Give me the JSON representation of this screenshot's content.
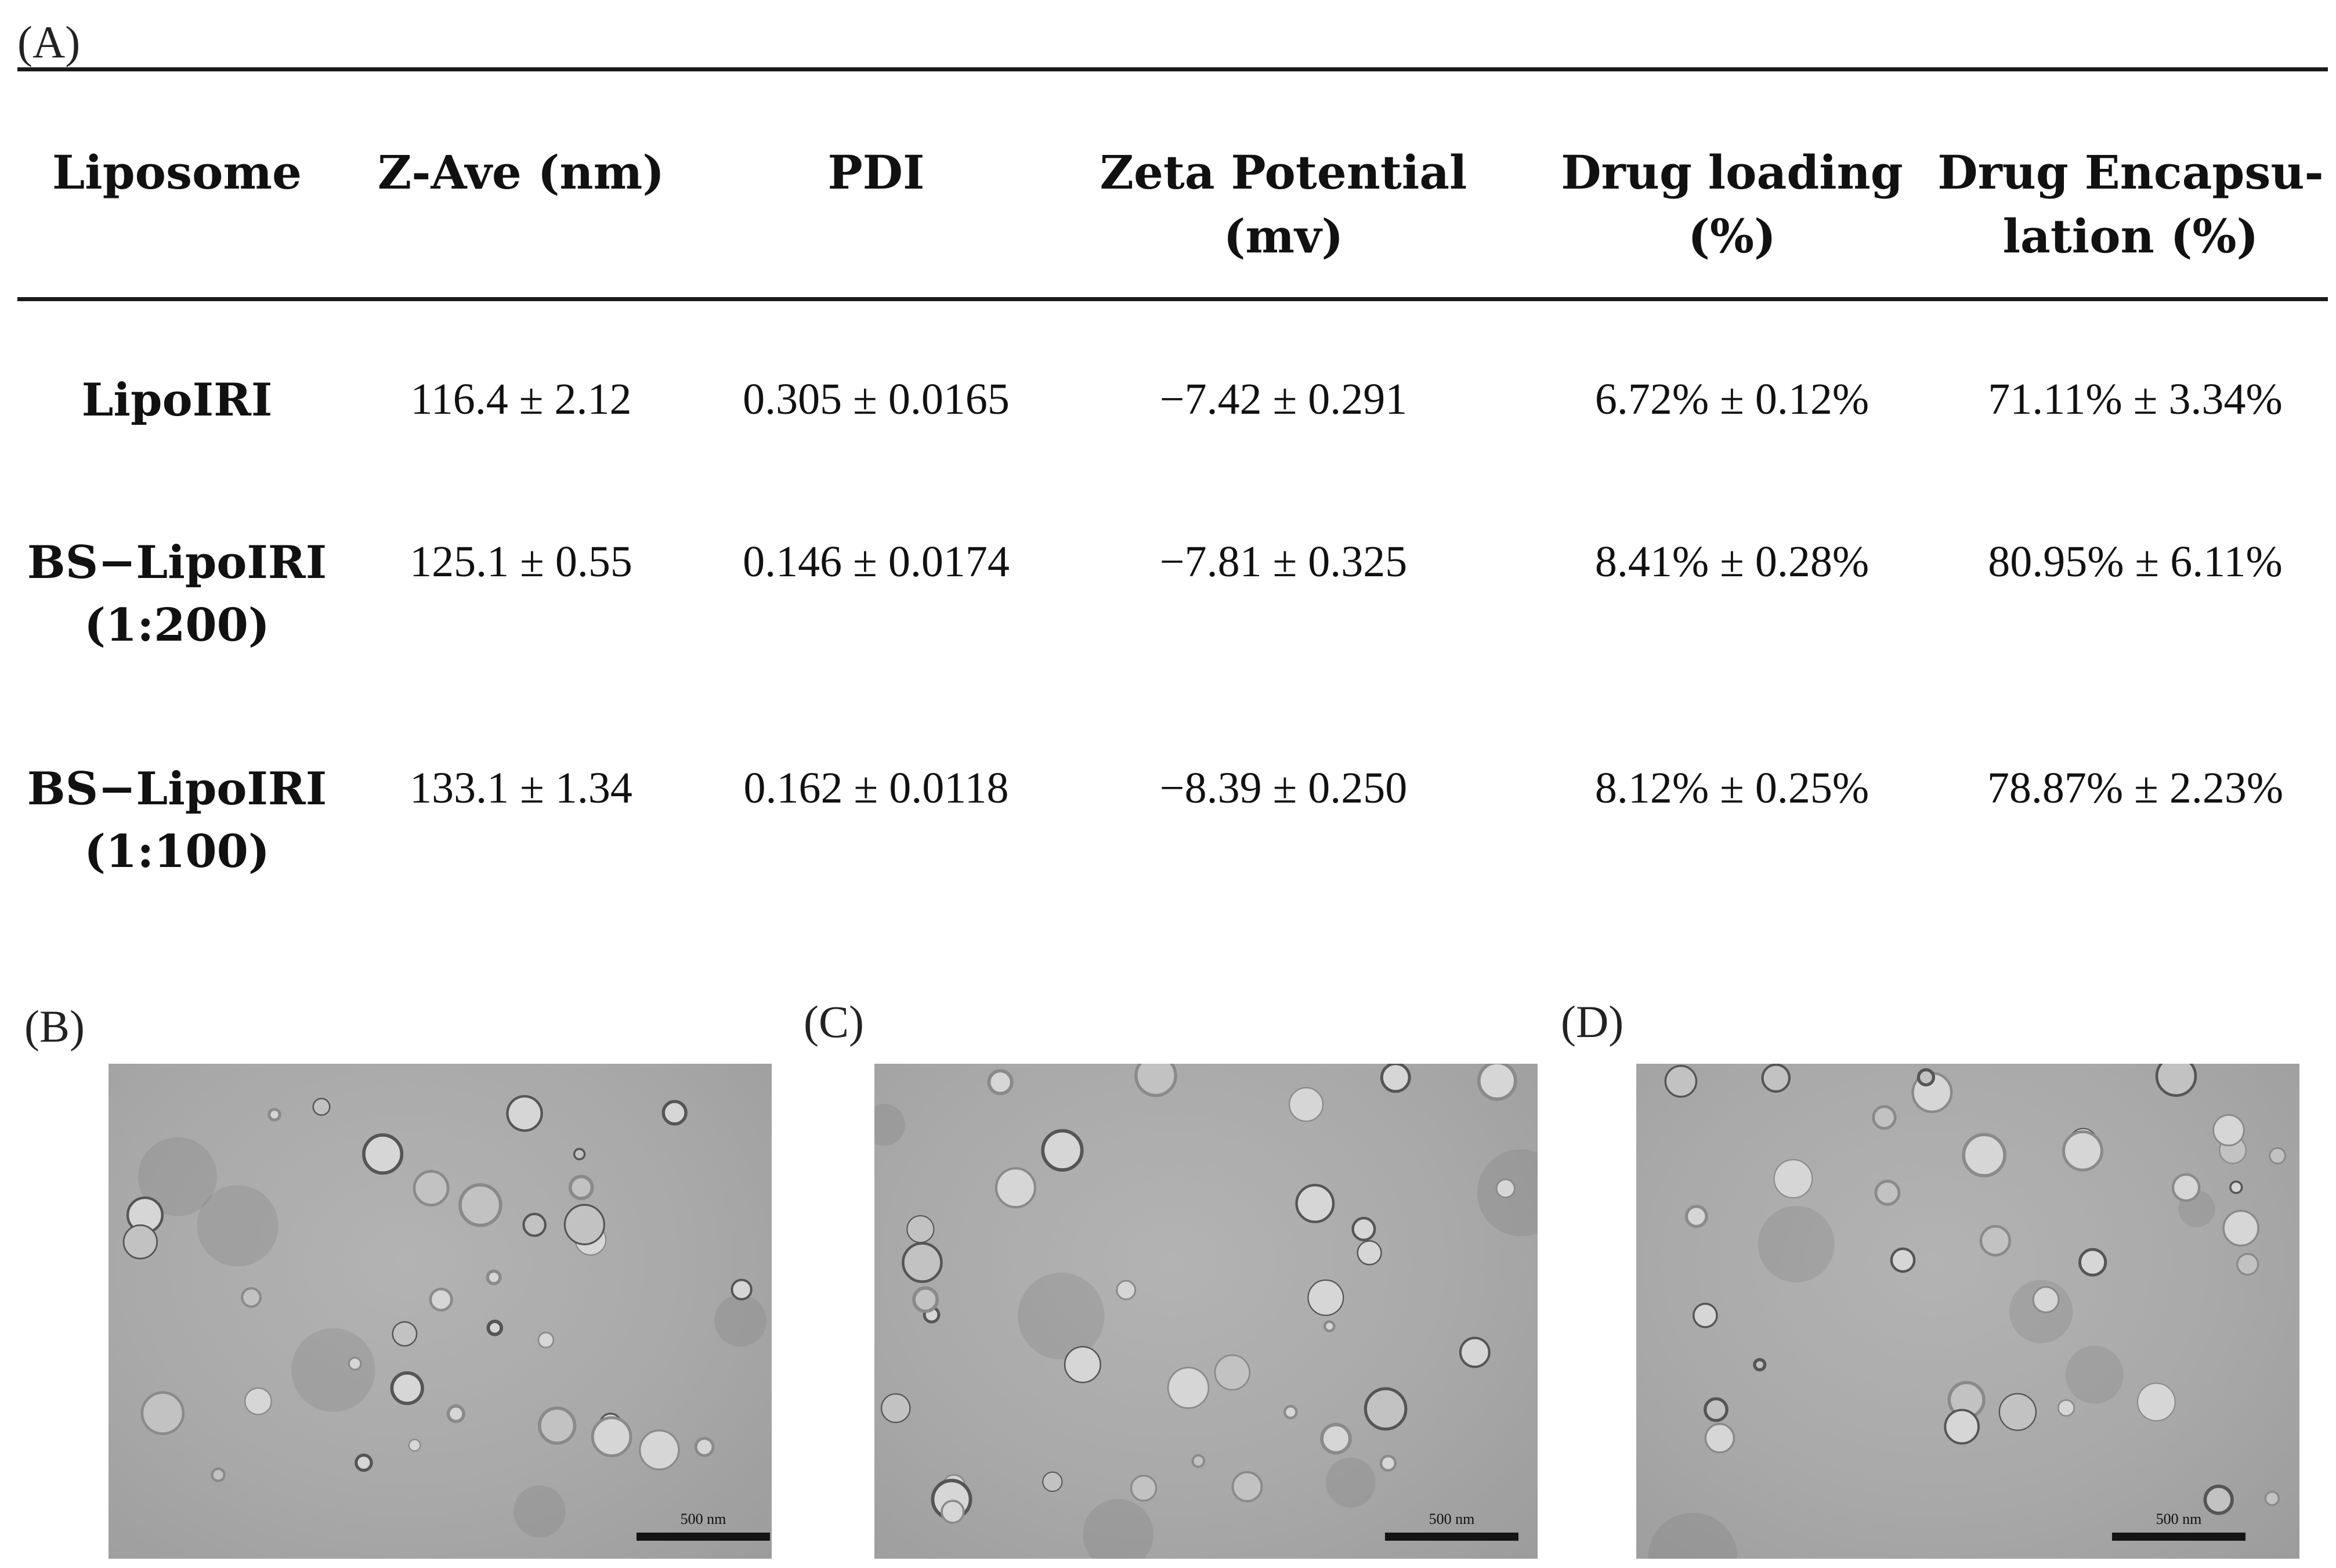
{
  "figure": {
    "panel_a_label": "(A)",
    "table": {
      "columns": [
        {
          "line1": "Liposome",
          "line2": ""
        },
        {
          "line1": "Z-Ave (nm)",
          "line2": ""
        },
        {
          "line1": "PDI",
          "line2": ""
        },
        {
          "line1": "Zeta Potential",
          "line2": "(mv)"
        },
        {
          "line1": "Drug loading",
          "line2": "(%)"
        },
        {
          "line1": "Drug Encapsu-",
          "line2": "lation (%)"
        }
      ],
      "rows": [
        {
          "name_line1": "LipoIRI",
          "name_line2": "",
          "z_ave": "116.4 ± 2.12",
          "pdi": "0.305 ± 0.0165",
          "zeta": "−7.42 ± 0.291",
          "loading": "6.72% ± 0.12%",
          "encapsulation": "71.11% ± 3.34%"
        },
        {
          "name_line1": "BS−LipoIRI",
          "name_line2": "(1:200)",
          "z_ave": "125.1 ± 0.55",
          "pdi": "0.146 ± 0.0174",
          "zeta": "−7.81 ± 0.325",
          "loading": "8.41% ± 0.28%",
          "encapsulation": "80.95% ± 6.11%"
        },
        {
          "name_line1": "BS−LipoIRI",
          "name_line2": "(1:100)",
          "z_ave": "133.1 ± 1.34",
          "pdi": "0.162 ± 0.0118",
          "zeta": "−8.39 ± 0.250",
          "loading": "8.12% ± 0.25%",
          "encapsulation": "78.87% ± 2.23%"
        }
      ]
    },
    "images": [
      {
        "label": "(B)",
        "scale_label": "500 nm"
      },
      {
        "label": "(C)",
        "scale_label": "500 nm"
      },
      {
        "label": "(D)",
        "scale_label": "500 nm"
      }
    ]
  }
}
